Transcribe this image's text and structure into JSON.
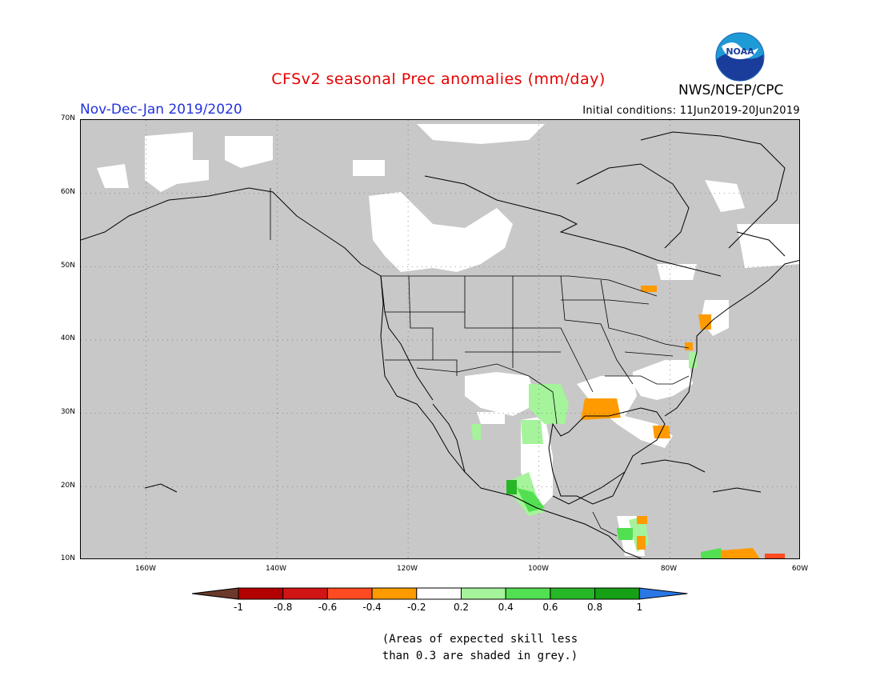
{
  "title": "CFSv2 seasonal Prec anomalies (mm/day)",
  "period": "Nov-Dec-Jan 2019/2020",
  "initial_conditions": "Initial conditions: 11Jun2019-20Jun2019",
  "agency": "NWS/NCEP/CPC",
  "logo_text": "NOAA",
  "map": {
    "lon_range": [
      -170,
      -60
    ],
    "lat_range": [
      10,
      70
    ],
    "lat_labels": [
      "70N",
      "60N",
      "50N",
      "40N",
      "30N",
      "20N",
      "10N"
    ],
    "lon_labels": [
      "160W",
      "140W",
      "120W",
      "100W",
      "80W",
      "60W"
    ],
    "grey_meaning": "Areas of expected skill less than 0.3"
  },
  "colorbar": {
    "labels": [
      "-1",
      "-0.8",
      "-0.6",
      "-0.4",
      "-0.2",
      "0.2",
      "0.4",
      "0.6",
      "0.8",
      "1"
    ],
    "colors": [
      "#6b3a2a",
      "#b30000",
      "#d11414",
      "#ff4b1f",
      "#ff9b00",
      "#ffffff",
      "#a5f39a",
      "#52df52",
      "#26b726",
      "#15a015",
      "#2a77e6"
    ]
  },
  "note_lines": [
    "(Areas of expected skill less",
    "than 0.3 are shaded in grey.)"
  ]
}
